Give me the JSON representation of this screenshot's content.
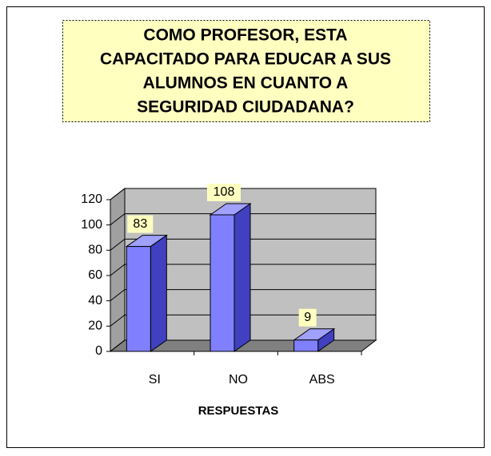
{
  "chart_data": {
    "type": "bar",
    "title": [
      "COMO PROFESOR, ESTA",
      "CAPACITADO PARA EDUCAR A SUS",
      "ALUMNOS EN CUANTO A",
      "SEGURIDAD CIUDADANA?"
    ],
    "x_label": "RESPUESTAS",
    "categories": [
      "SI",
      "NO",
      "ABS"
    ],
    "values": [
      83,
      108,
      9
    ],
    "color": "#8080ff",
    "ylim": [
      0,
      120
    ],
    "yticks": [
      0,
      20,
      40,
      60,
      80,
      100,
      120
    ],
    "grid": true
  }
}
